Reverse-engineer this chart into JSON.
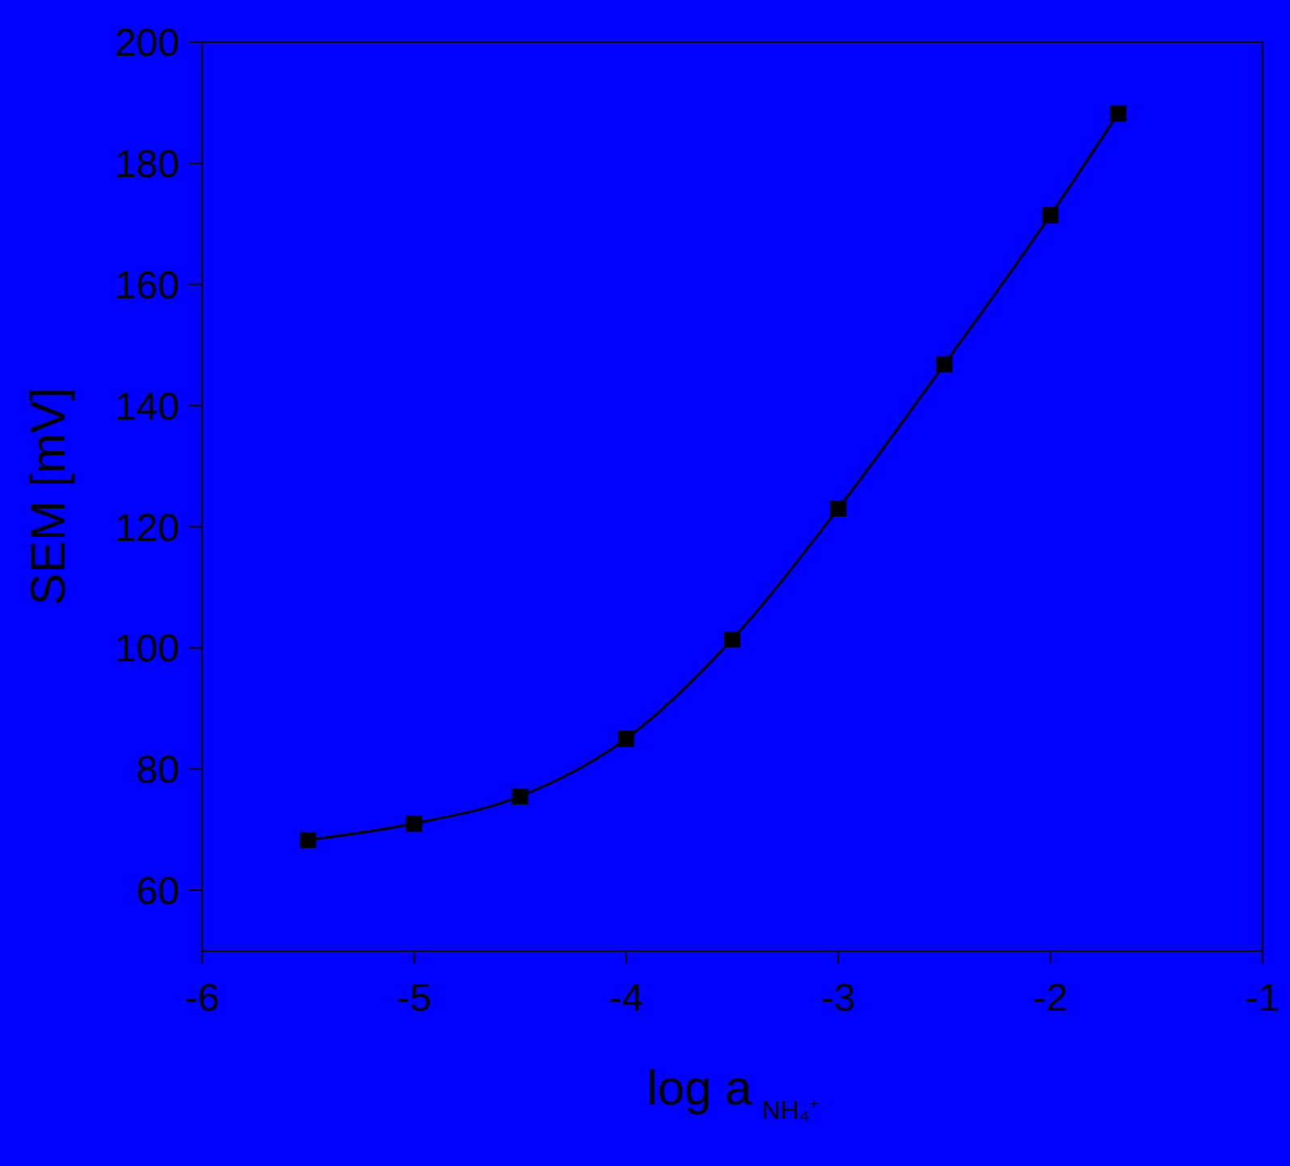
{
  "chart_data": {
    "type": "line",
    "xlabel": "log a$_{NH₄⁺}$",
    "ylabel": "SEM [mV]",
    "x": [
      -5.5,
      -5,
      -4.5,
      -4,
      -3.5,
      -3,
      -2.5,
      -2,
      -1.68
    ],
    "series": [
      {
        "color": "#000000",
        "values": [
          68.3,
          71,
          75.5,
          85,
          101.4,
          123,
          146.8,
          171.4,
          188.2
        ]
      }
    ],
    "xlim": [
      -6,
      -1
    ],
    "xticks": [
      -6,
      -5,
      -4,
      -3,
      -2,
      -1
    ],
    "ylim": [
      50,
      200
    ],
    "yticks": [
      60,
      80,
      100,
      120,
      140,
      160,
      180,
      200
    ],
    "marker": "square",
    "line_style": "solid"
  }
}
